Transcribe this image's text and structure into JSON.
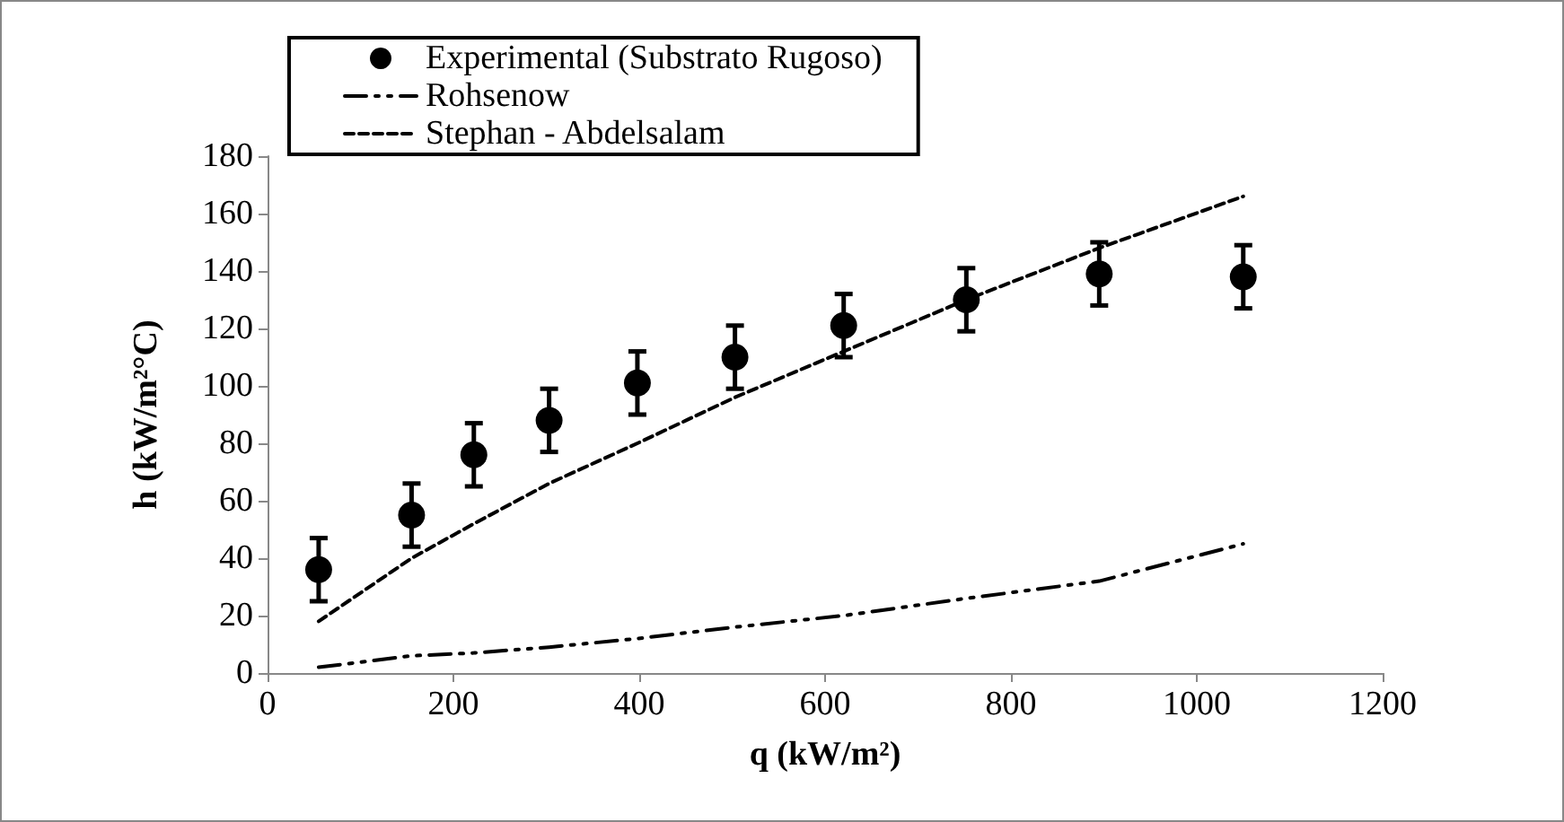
{
  "chart_data": {
    "type": "line",
    "xlabel": "q (kW/m²)",
    "ylabel": "h (kW/m²°C)",
    "xlim": [
      0,
      1200
    ],
    "xticks": [
      0,
      200,
      400,
      600,
      800,
      1000,
      1200
    ],
    "ylim": [
      0,
      180
    ],
    "yticks": [
      0,
      20,
      40,
      60,
      80,
      100,
      120,
      140,
      160,
      180
    ],
    "grid": false,
    "legend": "top left",
    "series": [
      {
        "name": "Experimental (Substrato Rugoso)",
        "type": "scatter",
        "marker": "circle",
        "color": "#000000",
        "x": [
          55,
          155,
          222,
          303,
          398,
          503,
          620,
          752,
          895,
          1050
        ],
        "values": [
          36,
          55,
          76,
          88,
          101,
          110,
          121,
          130,
          139,
          138
        ],
        "errors": [
          11,
          11,
          11,
          11,
          11,
          11,
          11,
          11,
          11,
          11
        ]
      },
      {
        "name": "Rohsenow",
        "line_style": "dashdot",
        "marker": "none",
        "color": "#000000",
        "x": [
          55,
          155,
          222,
          303,
          398,
          503,
          620,
          752,
          895,
          1050
        ],
        "values": [
          2,
          6,
          7,
          9,
          12,
          16,
          20,
          26,
          32,
          45
        ]
      },
      {
        "name": "Stephan - Abdelsalam",
        "line_style": "dashed",
        "marker": "none",
        "color": "#000000",
        "x": [
          55,
          155,
          222,
          303,
          398,
          503,
          620,
          752,
          895,
          1050
        ],
        "values": [
          18,
          40,
          52,
          66,
          80,
          96,
          112,
          130,
          148,
          166
        ]
      }
    ]
  }
}
